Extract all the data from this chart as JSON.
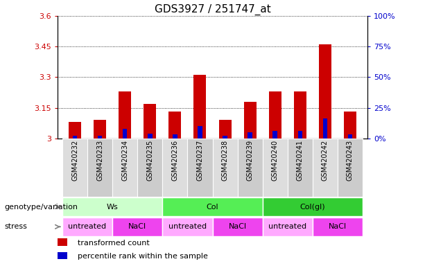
{
  "title": "GDS3927 / 251747_at",
  "samples": [
    "GSM420232",
    "GSM420233",
    "GSM420234",
    "GSM420235",
    "GSM420236",
    "GSM420237",
    "GSM420238",
    "GSM420239",
    "GSM420240",
    "GSM420241",
    "GSM420242",
    "GSM420243"
  ],
  "red_values": [
    3.08,
    3.09,
    3.23,
    3.17,
    3.13,
    3.31,
    3.09,
    3.18,
    3.23,
    3.23,
    3.46,
    3.13
  ],
  "blue_values": [
    2,
    2,
    8,
    4,
    3,
    10,
    2,
    5,
    6,
    6,
    16,
    3
  ],
  "ylim_left": [
    3.0,
    3.6
  ],
  "ylim_right": [
    0,
    100
  ],
  "yticks_left": [
    3.0,
    3.15,
    3.3,
    3.45,
    3.6
  ],
  "yticks_right": [
    0,
    25,
    50,
    75,
    100
  ],
  "ytick_labels_left": [
    "3",
    "3.15",
    "3.3",
    "3.45",
    "3.6"
  ],
  "ytick_labels_right": [
    "0%",
    "25%",
    "50%",
    "75%",
    "100%"
  ],
  "genotype_groups": [
    {
      "label": "Ws",
      "start": 0,
      "end": 3,
      "color": "#ccffcc"
    },
    {
      "label": "Col",
      "start": 4,
      "end": 7,
      "color": "#55ee55"
    },
    {
      "label": "Col(gl)",
      "start": 8,
      "end": 11,
      "color": "#33cc33"
    }
  ],
  "stress_groups": [
    {
      "label": "untreated",
      "start": 0,
      "end": 1,
      "color": "#ffaaff"
    },
    {
      "label": "NaCl",
      "start": 2,
      "end": 3,
      "color": "#ee44ee"
    },
    {
      "label": "untreated",
      "start": 4,
      "end": 5,
      "color": "#ffaaff"
    },
    {
      "label": "NaCl",
      "start": 6,
      "end": 7,
      "color": "#ee44ee"
    },
    {
      "label": "untreated",
      "start": 8,
      "end": 9,
      "color": "#ffaaff"
    },
    {
      "label": "NaCl",
      "start": 10,
      "end": 11,
      "color": "#ee44ee"
    }
  ],
  "bar_width": 0.5,
  "blue_bar_width": 0.18,
  "red_color": "#cc0000",
  "blue_color": "#0000cc",
  "left_tick_color": "#cc0000",
  "right_tick_color": "#0000cc",
  "title_fontsize": 11,
  "tick_fontsize": 8,
  "sample_fontsize": 7,
  "annot_fontsize": 8,
  "legend_fontsize": 8,
  "genotype_label": "genotype/variation",
  "stress_label": "stress",
  "cell_colors": [
    "#dddddd",
    "#cccccc"
  ]
}
